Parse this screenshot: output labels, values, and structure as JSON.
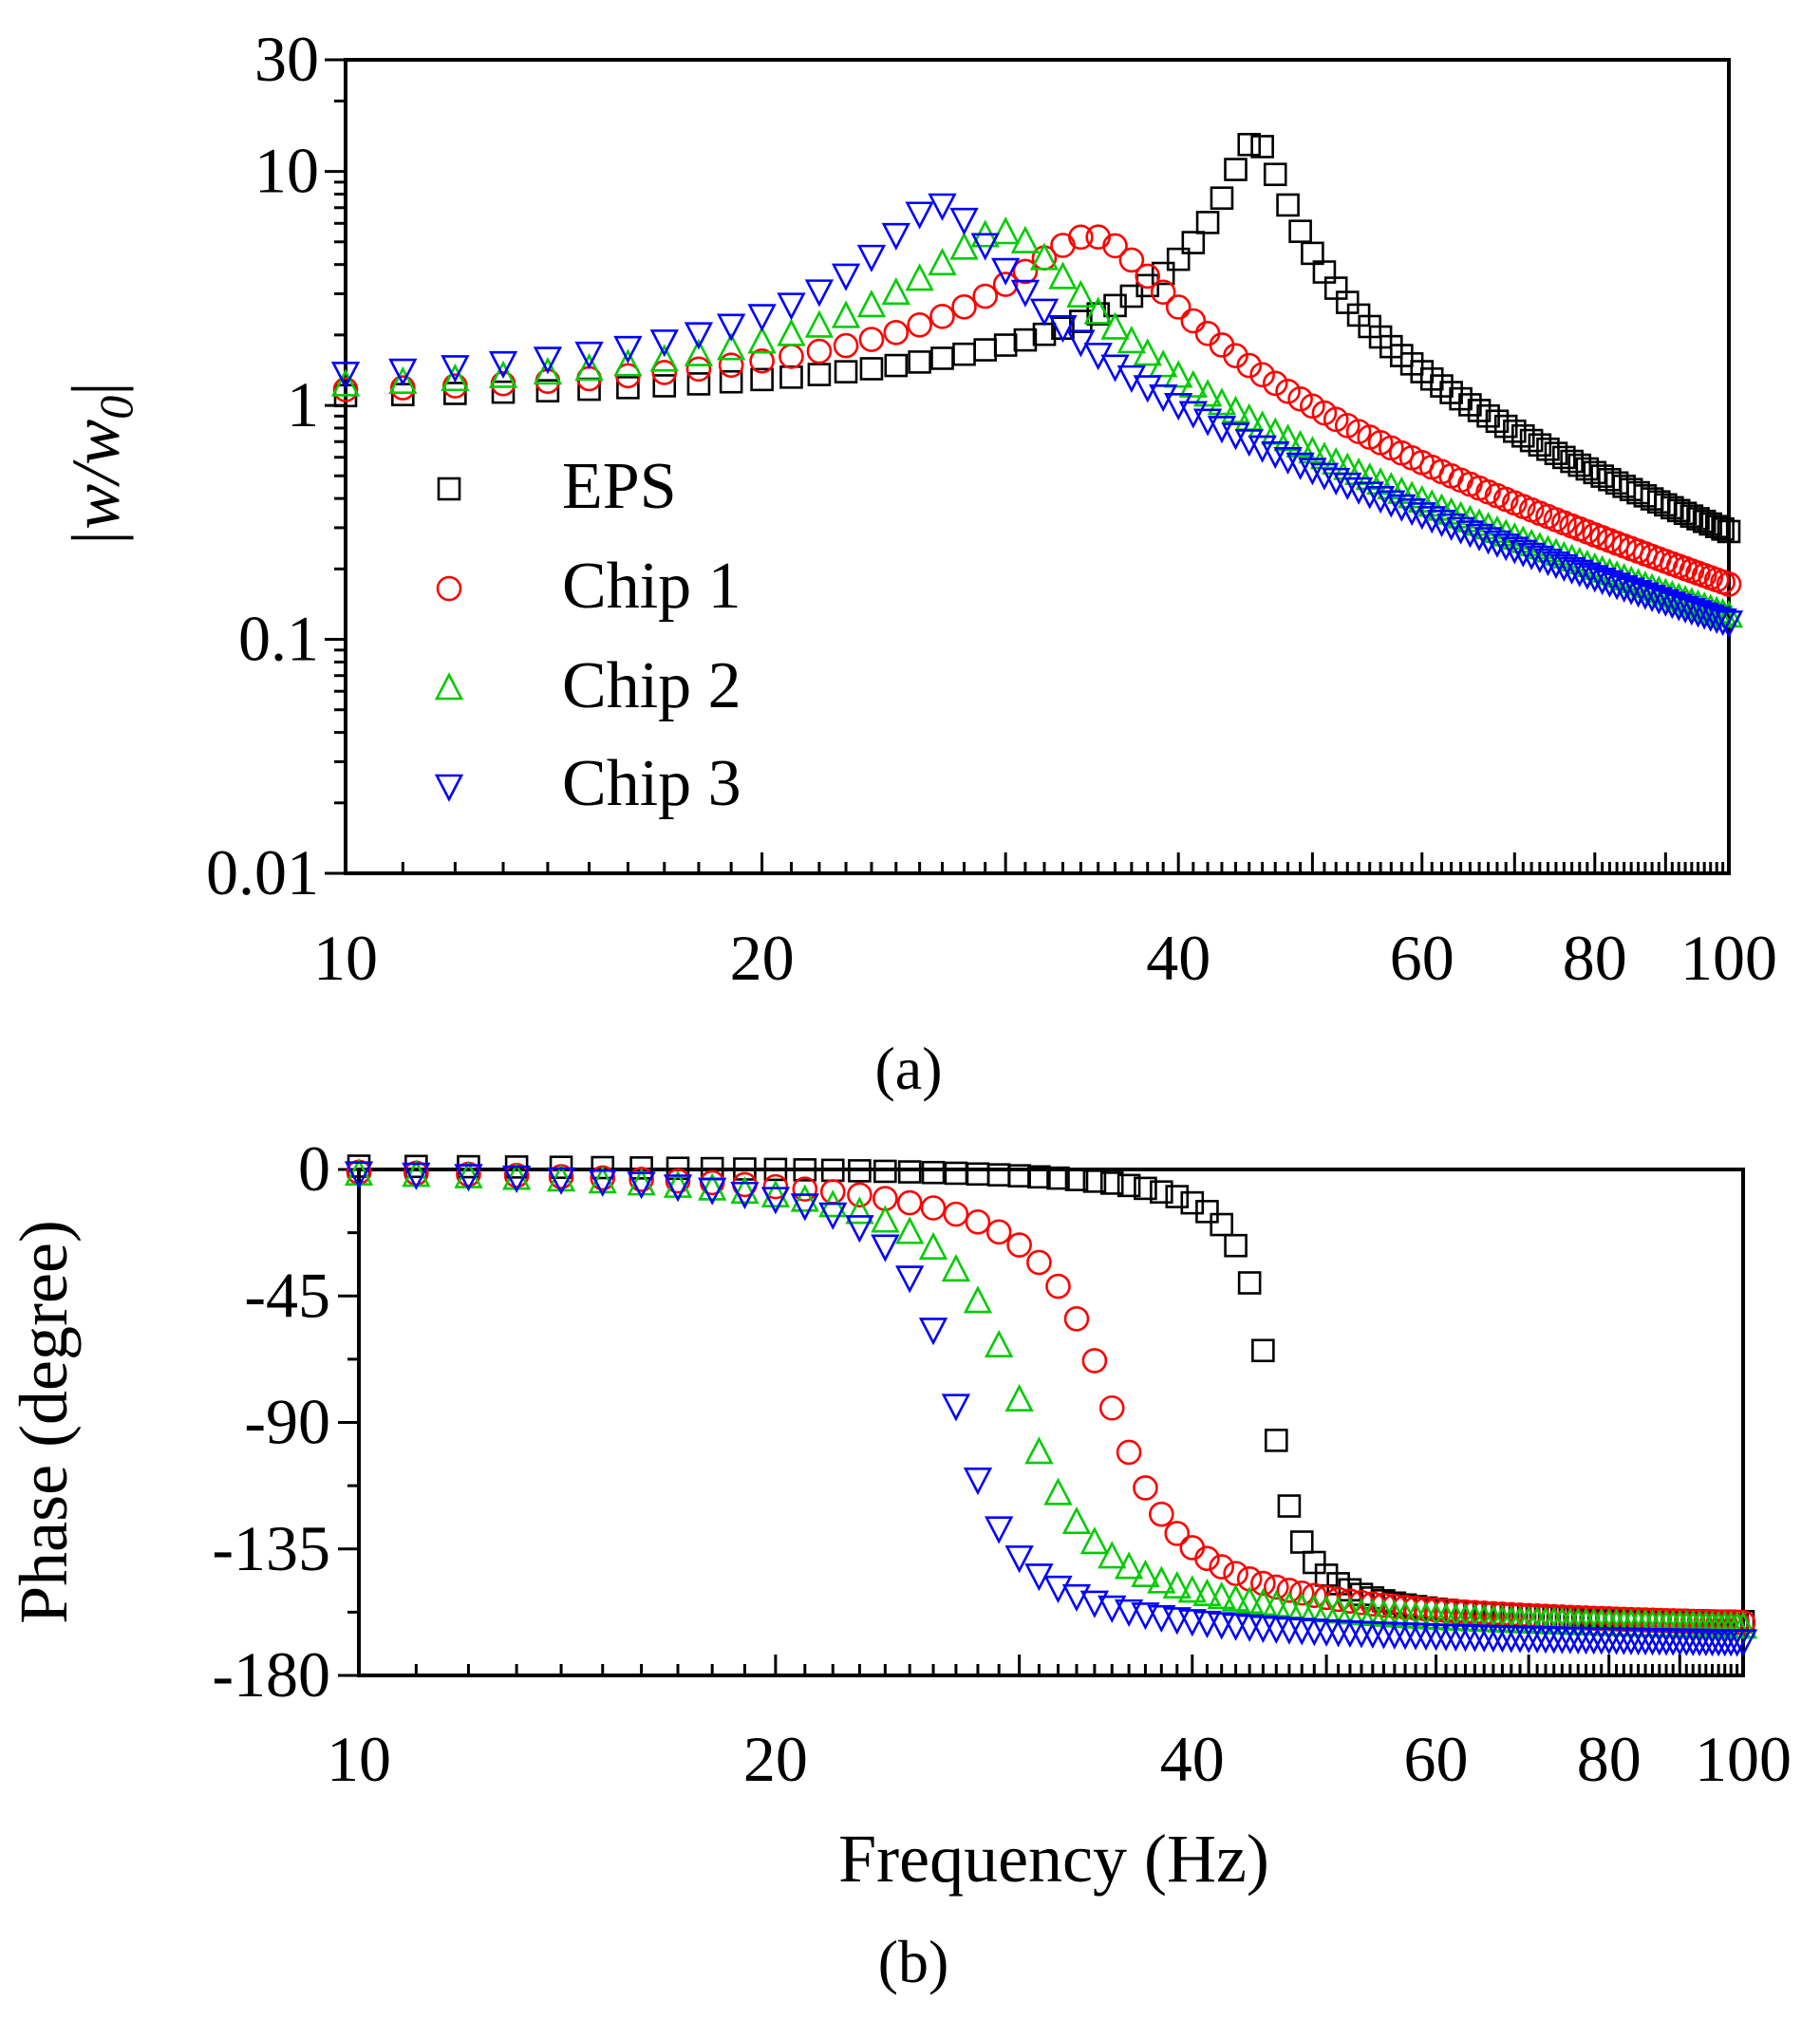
{
  "chart_data": [
    {
      "type": "scatter",
      "panel_label": "(a)",
      "x_scale": "log",
      "y_scale": "log",
      "xlim": [
        10,
        100
      ],
      "ylim": [
        0.01,
        30
      ],
      "xlabel": "",
      "ylabel": "|w/w0|",
      "ylabel_parts": {
        "pre": "|w/w",
        "sub": "0",
        "post": "|"
      },
      "x_ticks": [
        10,
        20,
        40,
        60,
        80,
        100
      ],
      "x_tick_labels": [
        "10",
        "20",
        "40",
        "60",
        "80",
        "100"
      ],
      "y_ticks": [
        0.01,
        0.1,
        1,
        10,
        30
      ],
      "y_tick_labels": [
        "0.01",
        "0.1",
        "1",
        "10",
        "30"
      ],
      "legend": {
        "placement": "lower-left",
        "entries": [
          "EPS",
          "Chip 1",
          "Chip 2",
          "Chip 3"
        ]
      },
      "series": [
        {
          "name": "EPS",
          "marker": "square",
          "color": "#000000",
          "resonance_hz": 45.5,
          "peak": 13.5,
          "low_freq_level": 1.05,
          "damping": 0.035
        },
        {
          "name": "Chip 1",
          "marker": "circle",
          "color": "#ff0000",
          "resonance_hz": 34.8,
          "peak": 5.3,
          "low_freq_level": 1.08,
          "damping": 0.09
        },
        {
          "name": "Chip 2",
          "marker": "triangle-up",
          "color": "#00cc00",
          "resonance_hz": 30.0,
          "peak": 5.5,
          "low_freq_level": 1.1,
          "damping": 0.09
        },
        {
          "name": "Chip 3",
          "marker": "triangle-down",
          "color": "#0000ff",
          "resonance_hz": 27.0,
          "peak": 7.2,
          "low_freq_level": 1.2,
          "damping": 0.07
        }
      ]
    },
    {
      "type": "scatter",
      "panel_label": "(b)",
      "x_scale": "log",
      "y_scale": "linear",
      "xlim": [
        10,
        100
      ],
      "ylim": [
        -180,
        0
      ],
      "xlabel": "Frequency (Hz)",
      "ylabel": "Phase (degree)",
      "x_ticks": [
        10,
        20,
        40,
        60,
        80,
        100
      ],
      "x_tick_labels": [
        "10",
        "20",
        "40",
        "60",
        "80",
        "100"
      ],
      "y_ticks": [
        0,
        -45,
        -90,
        -135,
        -180
      ],
      "y_tick_labels": [
        "0",
        "-45",
        "-90",
        "-135",
        "-180"
      ],
      "series": [
        {
          "name": "EPS",
          "marker": "square",
          "color": "#000000",
          "resonance_hz": 45.5,
          "final_phase": -165,
          "damping": 0.035
        },
        {
          "name": "Chip 1",
          "marker": "circle",
          "color": "#ff0000",
          "resonance_hz": 34.8,
          "final_phase": -167,
          "damping": 0.09
        },
        {
          "name": "Chip 2",
          "marker": "triangle-up",
          "color": "#00cc00",
          "resonance_hz": 30.0,
          "final_phase": -168,
          "damping": 0.09
        },
        {
          "name": "Chip 3",
          "marker": "triangle-down",
          "color": "#0000ff",
          "resonance_hz": 27.0,
          "final_phase": -172,
          "damping": 0.07
        }
      ]
    }
  ]
}
